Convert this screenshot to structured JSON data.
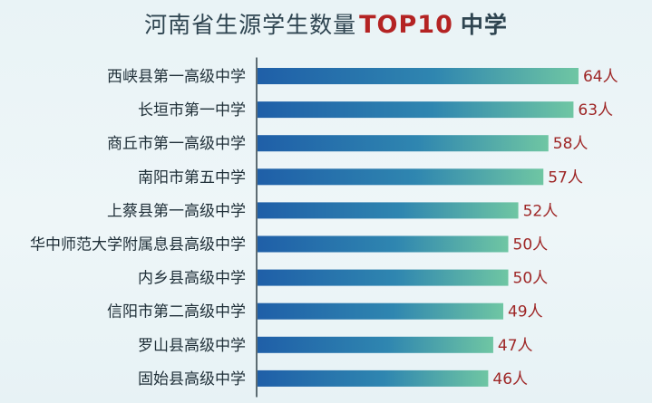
{
  "title": {
    "prefix": "河南省生源学生数量",
    "accent": "TOP10",
    "suffix": "中学",
    "accent_color": "#b42323"
  },
  "chart_data": {
    "type": "bar",
    "orientation": "horizontal",
    "categories": [
      "西峡县第一高级中学",
      "长垣市第一中学",
      "商丘市第一高级中学",
      "南阳市第五中学",
      "上蔡县第一高级中学",
      "华中师范大学附属息县高级中学",
      "内乡县高级中学",
      "信阳市第二高级中学",
      "罗山县高级中学",
      "固始县高级中学"
    ],
    "values": [
      64,
      63,
      58,
      57,
      52,
      50,
      50,
      49,
      47,
      46
    ],
    "value_labels": [
      "64人",
      "63人",
      "58人",
      "57人",
      "52人",
      "50人",
      "50人",
      "49人",
      "47人",
      "46人"
    ],
    "xlim": [
      0,
      66
    ],
    "grid": false,
    "colors": {
      "bar_start": "#1f5fa8",
      "bar_end": "#6fc6a3",
      "value_label": "#9e2626",
      "axis": "#3a4a52"
    }
  }
}
